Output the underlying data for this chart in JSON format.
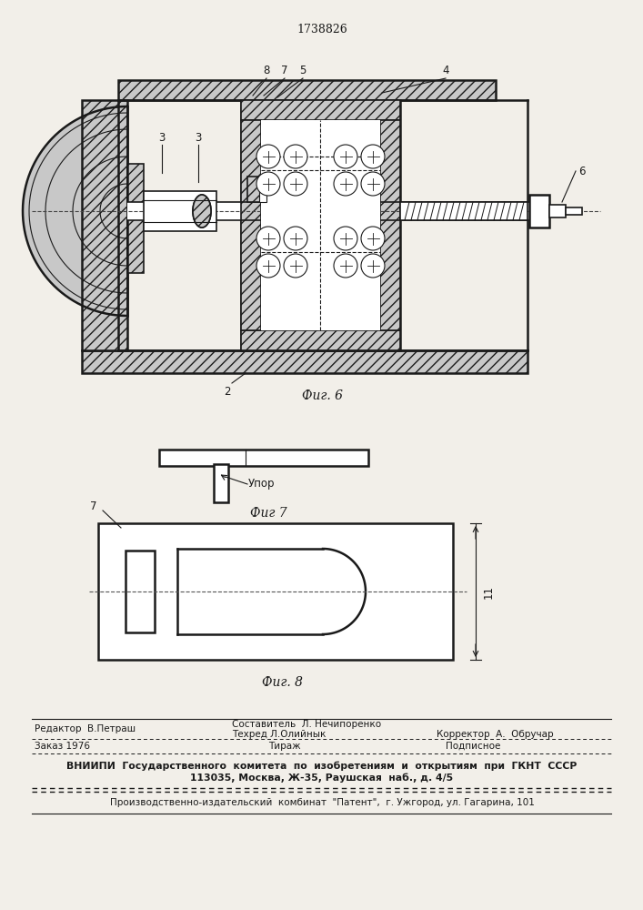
{
  "patent_number": "1738826",
  "fig6_caption": "Фиг. 6",
  "fig7_caption": "Фиг 7",
  "fig8_caption": "Фиг. 8",
  "upor_label": "Упор",
  "label_2": "2",
  "label_3a": "3",
  "label_3b": "3",
  "label_4": "4",
  "label_5": "5",
  "label_6": "6",
  "label_7_fig6": "7",
  "label_8": "8",
  "label_7_fig8": "7",
  "label_11": "11",
  "footer_editor": "Редактор  В.Петраш",
  "footer_composer": "Составитель  Л. Нечипоренко",
  "footer_techred": "Техред Л.Олийнык",
  "footer_corrector": "Корректор  А.  Обручар",
  "footer_order": "Заказ 1976",
  "footer_tirazh": "Тираж",
  "footer_podpisnoe": "Подписное",
  "footer_vniiphi": "ВНИИПИ  Государственного  комитета  по  изобретениям  и  открытиям  при  ГКНТ  СССР",
  "footer_address": "113035, Москва, Ж-35, Раушская  наб., д. 4/5",
  "footer_patent": "Производственно-издательский  комбинат  \"Патент\",  г. Ужгород, ул. Гагарина, 101",
  "bg_color": "#f2efe9"
}
